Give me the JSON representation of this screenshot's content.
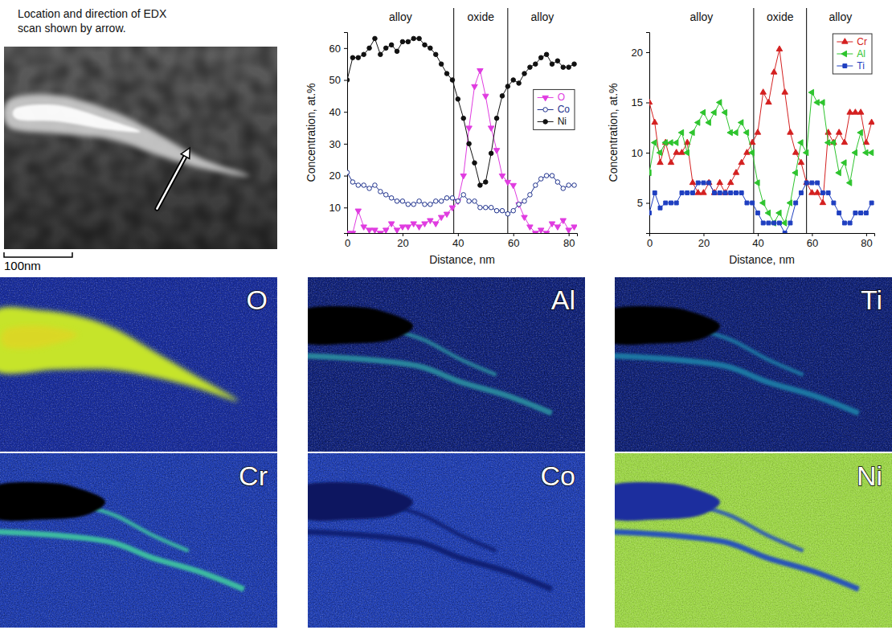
{
  "caption": "Location and direction of EDX scan shown by arrow.",
  "image": {
    "scale_bar": "100nm"
  },
  "chart_data": [
    {
      "type": "line",
      "x": [
        0,
        2,
        4,
        6,
        8,
        10,
        12,
        14,
        16,
        18,
        20,
        22,
        24,
        26,
        28,
        30,
        32,
        34,
        36,
        38,
        40,
        42,
        44,
        46,
        48,
        50,
        52,
        54,
        56,
        58,
        60,
        62,
        64,
        66,
        68,
        70,
        72,
        74,
        76,
        78,
        80,
        82
      ],
      "xlim": [
        0,
        83
      ],
      "xticks": [
        0,
        20,
        40,
        60,
        80
      ],
      "ylim": [
        2,
        65
      ],
      "yticks": [
        10,
        20,
        30,
        40,
        50,
        60
      ],
      "x_label": "Distance, nm",
      "y_label": "Concentration, at.%",
      "regions": {
        "labels": [
          "alloy",
          "oxide",
          "alloy"
        ],
        "boundaries": [
          38.5,
          58
        ]
      },
      "legend": "upper right",
      "series": [
        {
          "name": "O",
          "color": "#e03ce0",
          "marker": "triangle-down",
          "values": [
            2,
            2,
            9,
            4,
            3,
            3,
            2,
            3,
            5,
            3,
            4,
            4,
            5,
            4,
            5,
            6,
            5,
            7,
            8,
            10,
            12,
            20,
            35,
            48,
            53,
            45,
            35,
            28,
            20,
            18,
            17,
            11,
            7,
            4,
            2,
            3,
            2,
            5,
            4,
            6,
            3,
            4
          ]
        },
        {
          "name": "Co",
          "color": "#1c2f8c",
          "marker": "open-circle",
          "values": [
            21,
            18,
            17,
            17,
            16,
            17,
            15,
            14,
            13,
            12,
            12,
            11,
            11,
            12,
            11,
            11,
            12,
            12,
            13,
            13,
            12,
            14,
            12,
            12,
            10,
            10,
            10,
            9,
            9,
            8,
            9,
            11,
            12,
            14,
            17,
            19,
            20,
            20,
            18,
            16,
            17,
            17
          ]
        },
        {
          "name": "Ni",
          "color": "#111111",
          "marker": "circle",
          "values": [
            50,
            57,
            57,
            58,
            60,
            63,
            58,
            60,
            61,
            59,
            62,
            62,
            63,
            63,
            61,
            60,
            58,
            55,
            52,
            50,
            44,
            38,
            30,
            24,
            17,
            18,
            27,
            38,
            45,
            48,
            50,
            49,
            52,
            54,
            55,
            57,
            58,
            55,
            56,
            54,
            54,
            55
          ]
        }
      ]
    },
    {
      "type": "line",
      "x": [
        0,
        2,
        4,
        6,
        8,
        10,
        12,
        14,
        16,
        18,
        20,
        22,
        24,
        26,
        28,
        30,
        32,
        34,
        36,
        38,
        40,
        42,
        44,
        46,
        48,
        50,
        52,
        54,
        56,
        58,
        60,
        62,
        64,
        66,
        68,
        70,
        72,
        74,
        76,
        78,
        80,
        82
      ],
      "xlim": [
        0,
        83
      ],
      "xticks": [
        0,
        20,
        40,
        60,
        80
      ],
      "ylim": [
        2,
        22
      ],
      "yticks": [
        5,
        10,
        15,
        20
      ],
      "x_label": "Distance, nm",
      "y_label": "Concentration, at.%",
      "regions": {
        "labels": [
          "alloy",
          "oxide",
          "alloy"
        ],
        "boundaries": [
          38.5,
          58
        ]
      },
      "legend": "upper right",
      "series": [
        {
          "name": "Cr",
          "color": "#d42020",
          "marker": "triangle",
          "values": [
            15,
            13,
            9,
            11,
            9,
            10,
            10,
            11,
            7,
            6,
            6,
            7,
            6,
            7,
            6,
            7,
            8,
            9,
            10,
            11,
            12,
            16,
            15,
            18,
            20.3,
            16,
            12,
            10,
            9,
            7,
            6,
            6,
            5,
            12,
            11,
            12,
            11,
            14,
            14,
            14,
            11,
            13
          ]
        },
        {
          "name": "Al",
          "color": "#2ec42e",
          "marker": "triangle-left",
          "values": [
            8,
            11,
            10,
            11,
            11,
            11,
            12,
            10,
            12,
            13,
            14,
            13,
            14,
            15,
            14,
            12,
            12,
            13,
            12,
            10,
            7,
            5,
            4,
            3,
            4,
            3,
            5,
            8,
            11,
            10,
            16,
            15,
            15,
            11,
            11,
            8,
            9,
            7,
            10,
            12,
            10,
            10
          ]
        },
        {
          "name": "Ti",
          "color": "#1f3fc0",
          "marker": "square",
          "values": [
            4,
            6,
            4.5,
            5,
            5,
            5,
            6,
            6,
            6,
            7,
            7,
            7,
            6,
            6,
            6,
            6,
            6,
            6,
            5,
            5,
            4,
            3,
            3,
            3,
            3,
            2,
            3,
            5,
            6,
            7,
            7,
            7,
            6,
            6,
            5,
            4,
            3,
            3,
            4,
            4,
            4,
            5
          ]
        }
      ]
    }
  ],
  "maps": [
    {
      "label": "O"
    },
    {
      "label": "Al"
    },
    {
      "label": "Ti"
    },
    {
      "label": "Cr"
    },
    {
      "label": "Co"
    },
    {
      "label": "Ni"
    }
  ]
}
